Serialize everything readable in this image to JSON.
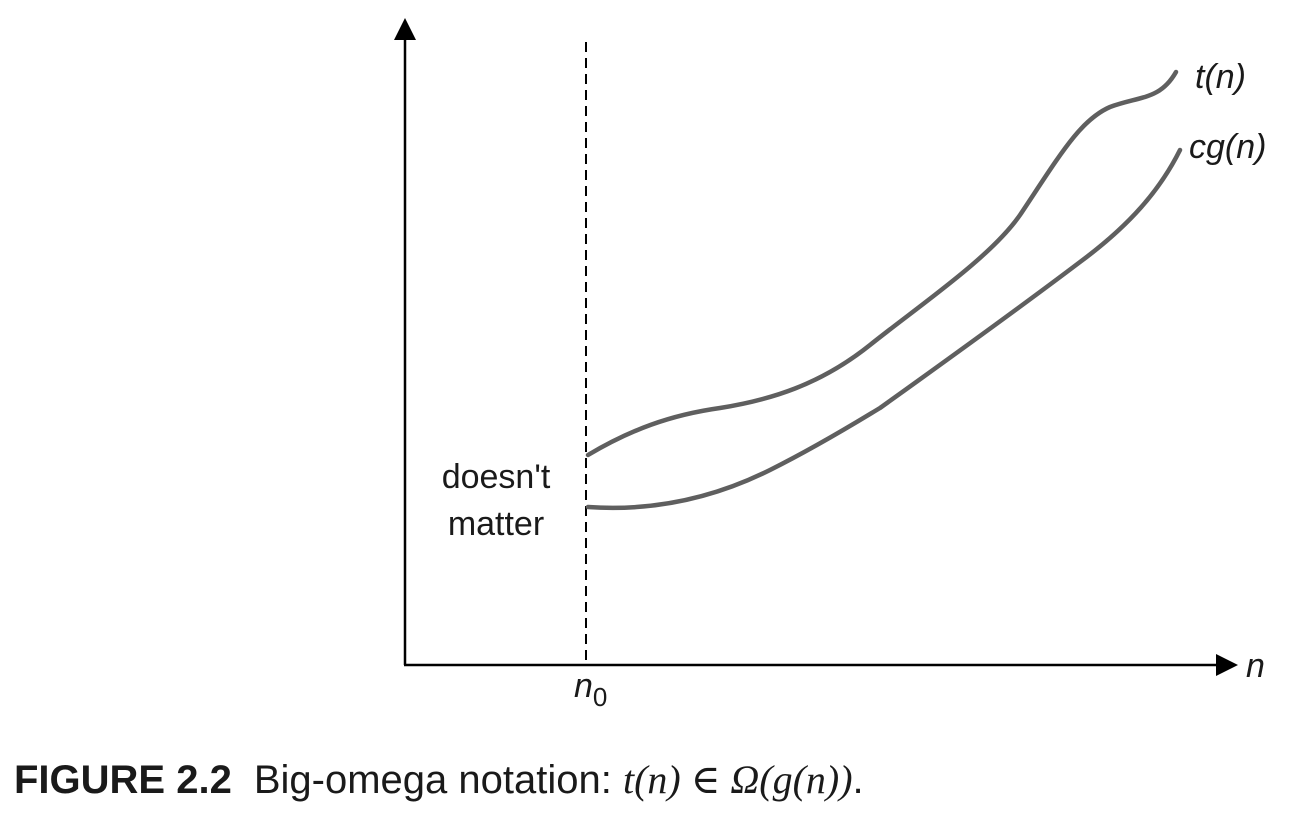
{
  "diagram": {
    "x_axis_label": "n",
    "threshold_label": "n",
    "threshold_subscript": "0",
    "region_note_line1": "doesn't",
    "region_note_line2": "matter",
    "upper_curve_label_func": "t",
    "upper_curve_label_arg": "(n)",
    "lower_curve_label_func": "cg",
    "lower_curve_label_arg": "(n)",
    "curve_color": "#5f5f5f",
    "axis_color": "#000000"
  },
  "caption": {
    "figure_number": "FIGURE 2.2",
    "text": "Big-omega notation: ",
    "math": "t(n) ∈ Ω(g(n))",
    "end": "."
  }
}
